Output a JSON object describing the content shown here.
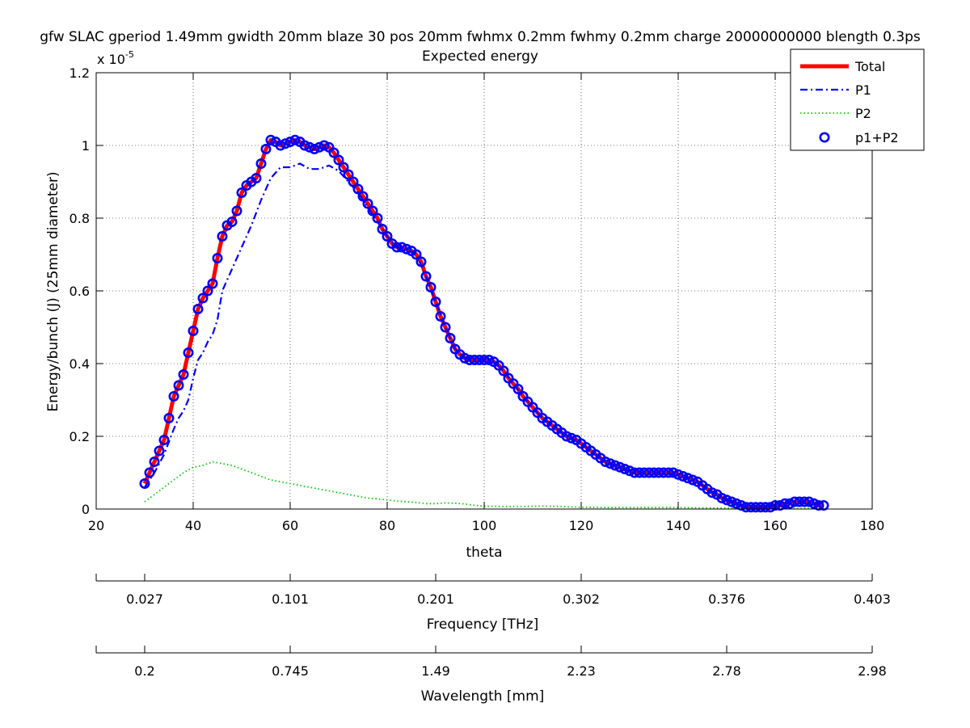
{
  "title_line1": "gfw SLAC gperiod 1.49mm gwidth 20mm blaze 30 pos 20mm fwhmx 0.2mm fwhmy 0.2mm charge 20000000000 blength 0.3ps",
  "title_line2": "Expected energy",
  "chart_data": {
    "type": "line",
    "title": "Expected energy",
    "xlabel": "theta",
    "ylabel": "Energy/bunch (J) (25mm diameter)",
    "y_exponent_label": "x 10",
    "y_exponent_power": "-5",
    "xlim": [
      20,
      180
    ],
    "ylim": [
      0,
      1.2
    ],
    "x_ticks": [
      20,
      40,
      60,
      80,
      100,
      120,
      140,
      160,
      180
    ],
    "y_ticks": [
      0,
      0.2,
      0.4,
      0.6,
      0.8,
      1,
      1.2
    ],
    "x_tick_labels": [
      "20",
      "40",
      "60",
      "80",
      "100",
      "120",
      "140",
      "160",
      "180"
    ],
    "y_tick_labels": [
      "0",
      "0.2",
      "0.4",
      "0.6",
      "0.8",
      "1",
      "1.2"
    ],
    "grid": true,
    "legend_position": "top-right",
    "series": [
      {
        "name": "Total",
        "color": "#ff0000",
        "style": "solid",
        "points": [
          [
            30,
            0.07
          ],
          [
            31,
            0.1
          ],
          [
            32,
            0.13
          ],
          [
            33,
            0.16
          ],
          [
            34,
            0.19
          ],
          [
            35,
            0.25
          ],
          [
            36,
            0.31
          ],
          [
            37,
            0.34
          ],
          [
            38,
            0.37
          ],
          [
            39,
            0.43
          ],
          [
            40,
            0.49
          ],
          [
            41,
            0.55
          ],
          [
            42,
            0.58
          ],
          [
            43,
            0.6
          ],
          [
            44,
            0.62
          ],
          [
            45,
            0.69
          ],
          [
            46,
            0.75
          ],
          [
            47,
            0.78
          ],
          [
            48,
            0.79
          ],
          [
            49,
            0.82
          ],
          [
            50,
            0.87
          ],
          [
            51,
            0.89
          ],
          [
            52,
            0.9
          ],
          [
            53,
            0.91
          ],
          [
            54,
            0.95
          ],
          [
            55,
            0.99
          ],
          [
            56,
            1.015
          ],
          [
            57,
            1.01
          ],
          [
            58,
            1.0
          ],
          [
            59,
            1.005
          ],
          [
            60,
            1.01
          ],
          [
            61,
            1.015
          ],
          [
            62,
            1.01
          ],
          [
            63,
            1.0
          ],
          [
            64,
            0.995
          ],
          [
            65,
            0.99
          ],
          [
            66,
            0.995
          ],
          [
            67,
            1.0
          ],
          [
            68,
            0.995
          ],
          [
            69,
            0.98
          ],
          [
            70,
            0.96
          ],
          [
            71,
            0.94
          ],
          [
            72,
            0.92
          ],
          [
            73,
            0.9
          ],
          [
            74,
            0.88
          ],
          [
            75,
            0.86
          ],
          [
            76,
            0.84
          ],
          [
            77,
            0.82
          ],
          [
            78,
            0.8
          ],
          [
            79,
            0.77
          ],
          [
            80,
            0.75
          ],
          [
            81,
            0.73
          ],
          [
            82,
            0.72
          ],
          [
            83,
            0.72
          ],
          [
            84,
            0.715
          ],
          [
            85,
            0.71
          ],
          [
            86,
            0.7
          ],
          [
            87,
            0.68
          ],
          [
            88,
            0.64
          ],
          [
            89,
            0.61
          ],
          [
            90,
            0.57
          ],
          [
            91,
            0.53
          ],
          [
            92,
            0.5
          ],
          [
            93,
            0.47
          ],
          [
            94,
            0.44
          ],
          [
            95,
            0.425
          ],
          [
            96,
            0.415
          ],
          [
            97,
            0.41
          ],
          [
            98,
            0.41
          ],
          [
            99,
            0.41
          ],
          [
            100,
            0.41
          ],
          [
            101,
            0.41
          ],
          [
            102,
            0.405
          ],
          [
            103,
            0.395
          ],
          [
            104,
            0.38
          ],
          [
            105,
            0.36
          ],
          [
            106,
            0.345
          ],
          [
            107,
            0.33
          ],
          [
            108,
            0.31
          ],
          [
            109,
            0.295
          ],
          [
            110,
            0.28
          ],
          [
            111,
            0.265
          ],
          [
            112,
            0.25
          ],
          [
            113,
            0.24
          ],
          [
            114,
            0.23
          ],
          [
            115,
            0.22
          ],
          [
            116,
            0.21
          ],
          [
            117,
            0.2
          ],
          [
            118,
            0.195
          ],
          [
            119,
            0.19
          ],
          [
            120,
            0.18
          ],
          [
            121,
            0.17
          ],
          [
            122,
            0.16
          ],
          [
            123,
            0.15
          ],
          [
            124,
            0.14
          ],
          [
            125,
            0.13
          ],
          [
            126,
            0.125
          ],
          [
            127,
            0.12
          ],
          [
            128,
            0.115
          ],
          [
            129,
            0.11
          ],
          [
            130,
            0.105
          ],
          [
            131,
            0.1
          ],
          [
            132,
            0.1
          ],
          [
            133,
            0.1
          ],
          [
            134,
            0.1
          ],
          [
            135,
            0.1
          ],
          [
            136,
            0.1
          ],
          [
            137,
            0.1
          ],
          [
            138,
            0.1
          ],
          [
            139,
            0.1
          ],
          [
            140,
            0.095
          ],
          [
            141,
            0.09
          ],
          [
            142,
            0.085
          ],
          [
            143,
            0.08
          ],
          [
            144,
            0.075
          ],
          [
            145,
            0.065
          ],
          [
            146,
            0.055
          ],
          [
            147,
            0.045
          ],
          [
            148,
            0.04
          ],
          [
            149,
            0.03
          ],
          [
            150,
            0.025
          ],
          [
            151,
            0.02
          ],
          [
            152,
            0.015
          ],
          [
            153,
            0.01
          ],
          [
            154,
            0.005
          ],
          [
            155,
            0.005
          ],
          [
            156,
            0.005
          ],
          [
            157,
            0.005
          ],
          [
            158,
            0.005
          ],
          [
            159,
            0.005
          ],
          [
            160,
            0.01
          ],
          [
            161,
            0.01
          ],
          [
            162,
            0.015
          ],
          [
            163,
            0.015
          ],
          [
            164,
            0.02
          ],
          [
            165,
            0.02
          ],
          [
            166,
            0.02
          ],
          [
            167,
            0.02
          ],
          [
            168,
            0.015
          ],
          [
            169,
            0.01
          ],
          [
            170,
            0.01
          ]
        ]
      },
      {
        "name": "P1",
        "color": "#0000ff",
        "style": "dashdot",
        "points": [
          [
            30,
            0.06
          ],
          [
            32,
            0.1
          ],
          [
            34,
            0.15
          ],
          [
            36,
            0.22
          ],
          [
            37,
            0.25
          ],
          [
            38,
            0.27
          ],
          [
            39,
            0.3
          ],
          [
            40,
            0.36
          ],
          [
            41,
            0.41
          ],
          [
            42,
            0.43
          ],
          [
            43,
            0.46
          ],
          [
            44,
            0.48
          ],
          [
            45,
            0.52
          ],
          [
            46,
            0.6
          ],
          [
            48,
            0.66
          ],
          [
            50,
            0.72
          ],
          [
            52,
            0.78
          ],
          [
            54,
            0.85
          ],
          [
            56,
            0.91
          ],
          [
            58,
            0.94
          ],
          [
            60,
            0.94
          ],
          [
            62,
            0.95
          ],
          [
            64,
            0.935
          ],
          [
            66,
            0.935
          ],
          [
            68,
            0.945
          ],
          [
            70,
            0.93
          ],
          [
            72,
            0.9
          ],
          [
            74,
            0.87
          ],
          [
            76,
            0.83
          ],
          [
            78,
            0.79
          ],
          [
            80,
            0.75
          ],
          [
            82,
            0.72
          ],
          [
            84,
            0.715
          ],
          [
            86,
            0.7
          ],
          [
            88,
            0.64
          ],
          [
            90,
            0.57
          ],
          [
            92,
            0.5
          ],
          [
            94,
            0.44
          ],
          [
            96,
            0.415
          ],
          [
            98,
            0.41
          ],
          [
            100,
            0.41
          ],
          [
            102,
            0.405
          ],
          [
            104,
            0.38
          ],
          [
            106,
            0.345
          ],
          [
            108,
            0.31
          ],
          [
            110,
            0.28
          ],
          [
            112,
            0.25
          ],
          [
            114,
            0.23
          ],
          [
            116,
            0.21
          ],
          [
            118,
            0.195
          ],
          [
            120,
            0.18
          ],
          [
            122,
            0.16
          ],
          [
            124,
            0.14
          ],
          [
            126,
            0.125
          ],
          [
            128,
            0.115
          ],
          [
            130,
            0.105
          ],
          [
            132,
            0.1
          ],
          [
            136,
            0.1
          ],
          [
            140,
            0.095
          ],
          [
            142,
            0.085
          ],
          [
            144,
            0.075
          ],
          [
            146,
            0.055
          ],
          [
            148,
            0.04
          ],
          [
            150,
            0.025
          ],
          [
            152,
            0.015
          ],
          [
            154,
            0.005
          ],
          [
            158,
            0.005
          ],
          [
            160,
            0.01
          ],
          [
            162,
            0.015
          ],
          [
            164,
            0.02
          ],
          [
            166,
            0.02
          ],
          [
            168,
            0.015
          ],
          [
            170,
            0.01
          ]
        ]
      },
      {
        "name": "P2",
        "color": "#00cc00",
        "style": "dotted",
        "points": [
          [
            30,
            0.02
          ],
          [
            32,
            0.04
          ],
          [
            34,
            0.06
          ],
          [
            36,
            0.08
          ],
          [
            38,
            0.1
          ],
          [
            40,
            0.115
          ],
          [
            42,
            0.12
          ],
          [
            44,
            0.13
          ],
          [
            46,
            0.125
          ],
          [
            48,
            0.12
          ],
          [
            50,
            0.11
          ],
          [
            52,
            0.1
          ],
          [
            54,
            0.09
          ],
          [
            56,
            0.08
          ],
          [
            58,
            0.075
          ],
          [
            60,
            0.07
          ],
          [
            62,
            0.065
          ],
          [
            64,
            0.06
          ],
          [
            66,
            0.055
          ],
          [
            68,
            0.05
          ],
          [
            70,
            0.045
          ],
          [
            72,
            0.04
          ],
          [
            74,
            0.035
          ],
          [
            76,
            0.03
          ],
          [
            78,
            0.028
          ],
          [
            80,
            0.025
          ],
          [
            82,
            0.022
          ],
          [
            84,
            0.02
          ],
          [
            86,
            0.018
          ],
          [
            88,
            0.015
          ],
          [
            90,
            0.015
          ],
          [
            92,
            0.017
          ],
          [
            94,
            0.016
          ],
          [
            96,
            0.014
          ],
          [
            98,
            0.01
          ],
          [
            100,
            0.008
          ],
          [
            104,
            0.007
          ],
          [
            108,
            0.007
          ],
          [
            112,
            0.008
          ],
          [
            116,
            0.007
          ],
          [
            120,
            0.005
          ],
          [
            126,
            0.004
          ],
          [
            130,
            0.004
          ],
          [
            136,
            0.004
          ],
          [
            140,
            0.004
          ],
          [
            146,
            0.003
          ],
          [
            150,
            0.003
          ],
          [
            156,
            0.002
          ],
          [
            160,
            0.002
          ],
          [
            165,
            0.002
          ],
          [
            170,
            0.002
          ]
        ]
      },
      {
        "name": "p1+P2",
        "color": "#0000ff",
        "style": "circle-markers",
        "points_from": "Total"
      }
    ],
    "secondary_axes": [
      {
        "label": "Frequency [THz]",
        "tick_positions_theta": [
          30,
          60,
          90,
          120,
          150,
          180
        ],
        "tick_labels": [
          "0.027",
          "0.101",
          "0.201",
          "0.302",
          "0.376",
          "0.403"
        ]
      },
      {
        "label": "Wavelength [mm]",
        "tick_positions_theta": [
          30,
          60,
          90,
          120,
          150,
          180
        ],
        "tick_labels": [
          "0.2",
          "0.745",
          "1.49",
          "2.23",
          "2.78",
          "2.98"
        ]
      }
    ]
  }
}
